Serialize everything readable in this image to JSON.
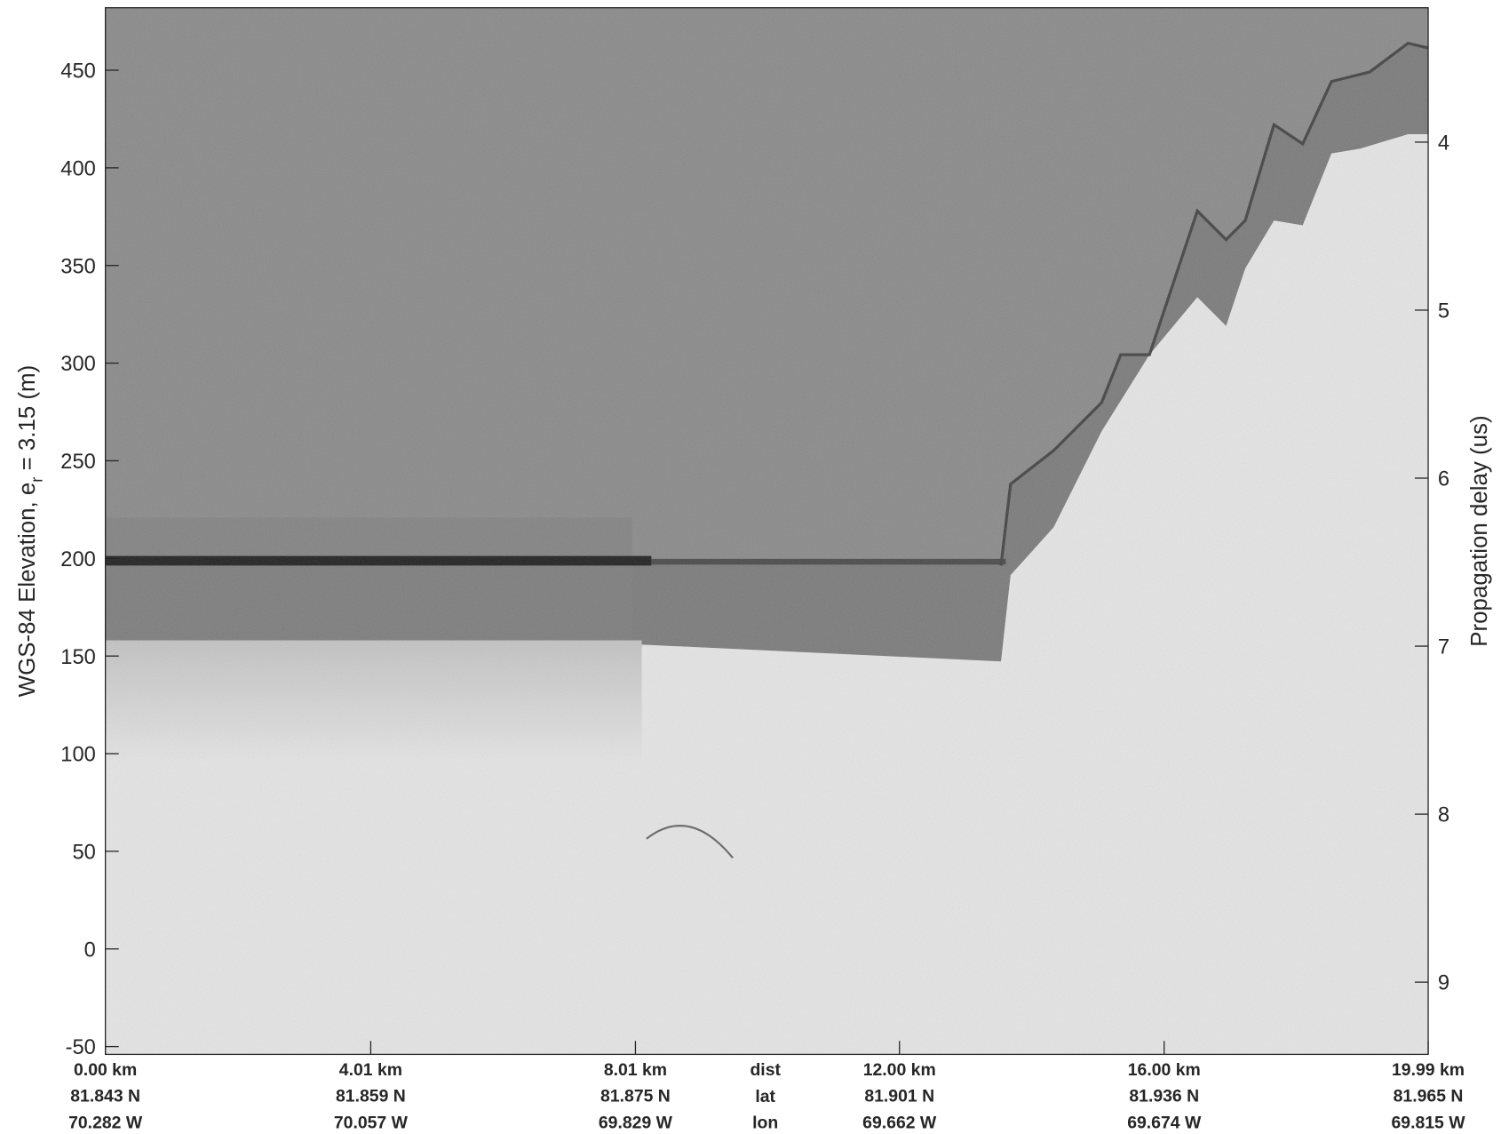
{
  "chart_data": {
    "type": "echogram",
    "ylabel": "WGS-84 Elevation, e",
    "ylabel_sub": "r",
    "ylabel_end": " = 3.15 (m)",
    "y2label": "Propagation delay (us)",
    "xlim": [
      0,
      19.99
    ],
    "xticks": [
      {
        "value": 0,
        "label": "0.00 km"
      },
      {
        "value": 4.01,
        "label": "4.01 km"
      },
      {
        "value": 8.01,
        "label": "8.01 km"
      },
      {
        "value": 12,
        "label": "12.00 km"
      },
      {
        "value": 16,
        "label": "16.00 km"
      },
      {
        "value": 19.99,
        "label": "19.99 km"
      }
    ],
    "lat_labels": [
      "81.843 N",
      "81.859 N",
      "81.875 N",
      "81.901 N",
      "81.936 N",
      "81.965 N"
    ],
    "lon_labels": [
      "70.282 W",
      "70.057 W",
      "69.829 W",
      "69.662 W",
      "69.674 W",
      "69.815 W"
    ],
    "row_labels": [
      "dist",
      "lat",
      "lon"
    ],
    "ylim": [
      -54,
      482
    ],
    "yticks": [
      -50,
      0,
      50,
      100,
      150,
      200,
      250,
      300,
      350,
      400,
      450
    ],
    "y2lim": [
      9.43,
      3.2
    ],
    "y2ticks": [
      4,
      5,
      6,
      7,
      8,
      9
    ]
  }
}
